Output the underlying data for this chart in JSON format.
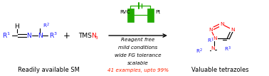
{
  "fig_width": 3.78,
  "fig_height": 1.07,
  "dpi": 100,
  "bg_color": "#ffffff",
  "hydrazone_label": "Readily available SM",
  "tetrazole_label": "Valuable tetrazoles",
  "conditions": [
    "Reagent free",
    "mild conditions",
    "wide FG tolerance",
    "scalable"
  ],
  "example_text": "41 examples, upto 99%",
  "color_blue": "#1414ff",
  "color_red": "#ff0000",
  "color_green": "#22aa00",
  "color_black": "#000000",
  "color_orange_red": "#ff2200",
  "fs_main": 6.5,
  "fs_small": 5.2,
  "fs_label": 6.0,
  "fs_cond": 5.2
}
